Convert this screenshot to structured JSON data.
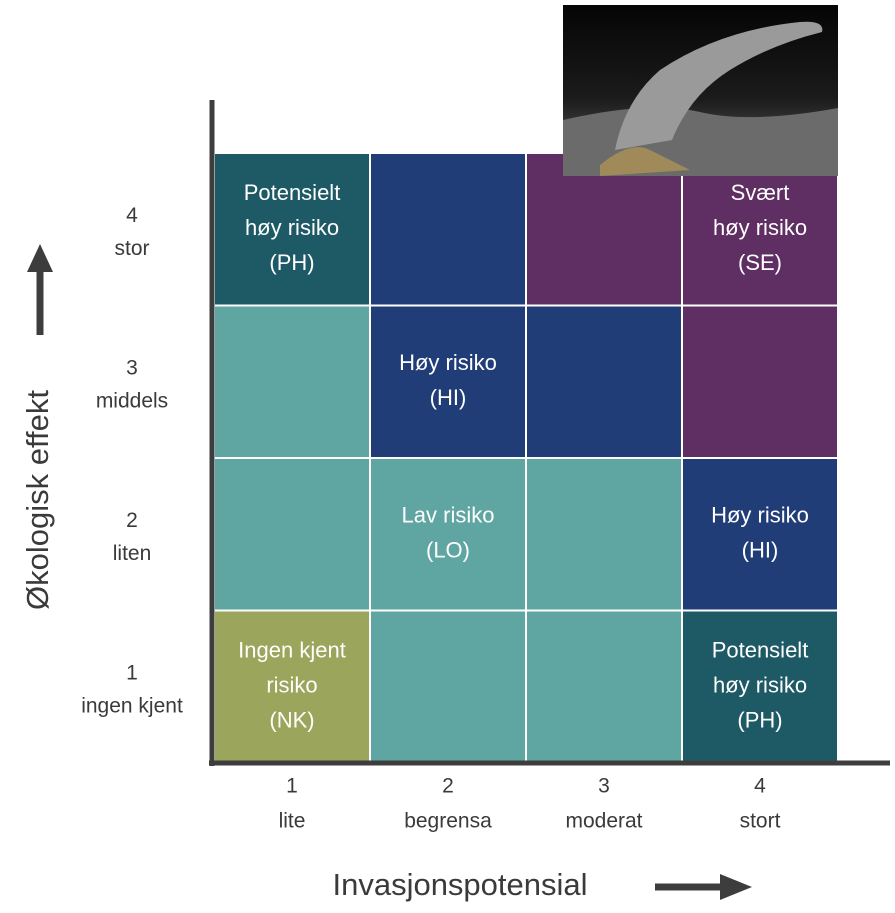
{
  "y_axis": {
    "title": "Økologisk effekt",
    "levels": [
      {
        "number": "4",
        "label": "stor"
      },
      {
        "number": "3",
        "label": "middels"
      },
      {
        "number": "2",
        "label": "liten"
      },
      {
        "number": "1",
        "label": "ingen  kjent"
      }
    ]
  },
  "x_axis": {
    "title": "Invasjonspotensial",
    "levels": [
      {
        "number": "1",
        "label": "lite"
      },
      {
        "number": "2",
        "label": "begrensa"
      },
      {
        "number": "3",
        "label": "moderat"
      },
      {
        "number": "4",
        "label": "stort"
      }
    ]
  },
  "matrix": {
    "rows": [
      [
        [
          "Potensielt",
          "høy risiko",
          "(PH)"
        ],
        null,
        null,
        [
          "Svært",
          "høy risiko",
          "(SE)"
        ]
      ],
      [
        null,
        [
          "Høy risiko",
          "(HI)"
        ],
        null,
        null
      ],
      [
        null,
        [
          "Lav risiko",
          "(LO)"
        ],
        null,
        [
          "Høy risiko",
          "(HI)"
        ]
      ],
      [
        [
          "Ingen kjent",
          "risiko",
          "(NK)"
        ],
        null,
        null,
        [
          "Potensielt",
          "høy risiko",
          "(PH)"
        ]
      ]
    ]
  }
}
